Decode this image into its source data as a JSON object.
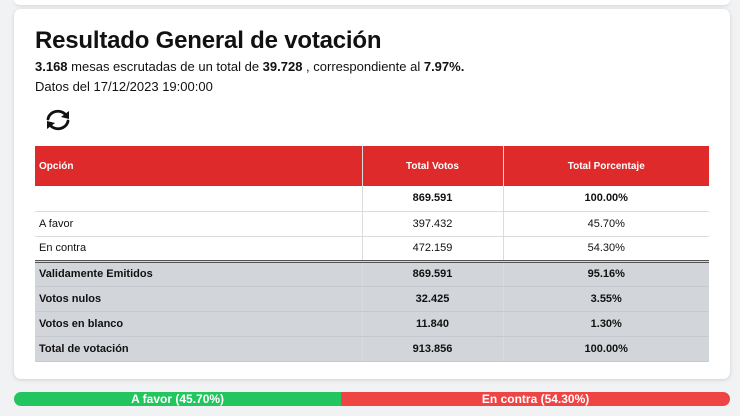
{
  "header": {
    "title": "Resultado General de votación",
    "summary": {
      "mesas_escrutadas": "3.168",
      "text_1": " mesas escrutadas de un total de ",
      "mesas_total": "39.728",
      "text_2": " , correspondiente al ",
      "percent": "7.97%."
    },
    "date_line": "Datos del 17/12/2023 19:00:00"
  },
  "refresh_icon": "refresh-icon",
  "table": {
    "headers": {
      "option": "Opción",
      "votes": "Total Votos",
      "percent": "Total Porcentaje"
    },
    "total_row": {
      "option": "",
      "votes": "869.591",
      "percent": "100.00%"
    },
    "rows": [
      {
        "option": "A favor",
        "votes": "397.432",
        "percent": "45.70%"
      },
      {
        "option": "En contra",
        "votes": "472.159",
        "percent": "54.30%"
      }
    ],
    "summary_rows": [
      {
        "option": "Validamente Emitidos",
        "votes": "869.591",
        "percent": "95.16%"
      },
      {
        "option": "Votos nulos",
        "votes": "32.425",
        "percent": "3.55%"
      },
      {
        "option": "Votos en blanco",
        "votes": "11.840",
        "percent": "1.30%"
      },
      {
        "option": "Total de votación",
        "votes": "913.856",
        "percent": "100.00%"
      }
    ]
  },
  "progress": {
    "favor": {
      "label": "A favor (45.70%)",
      "fraction": 0.457,
      "color": "#22c55e"
    },
    "contra": {
      "label": "En contra (54.30%)",
      "fraction": 0.543,
      "color": "#ef4444"
    }
  },
  "colors": {
    "header_red": "#de2a2a",
    "summary_gray": "#d2d5da"
  }
}
